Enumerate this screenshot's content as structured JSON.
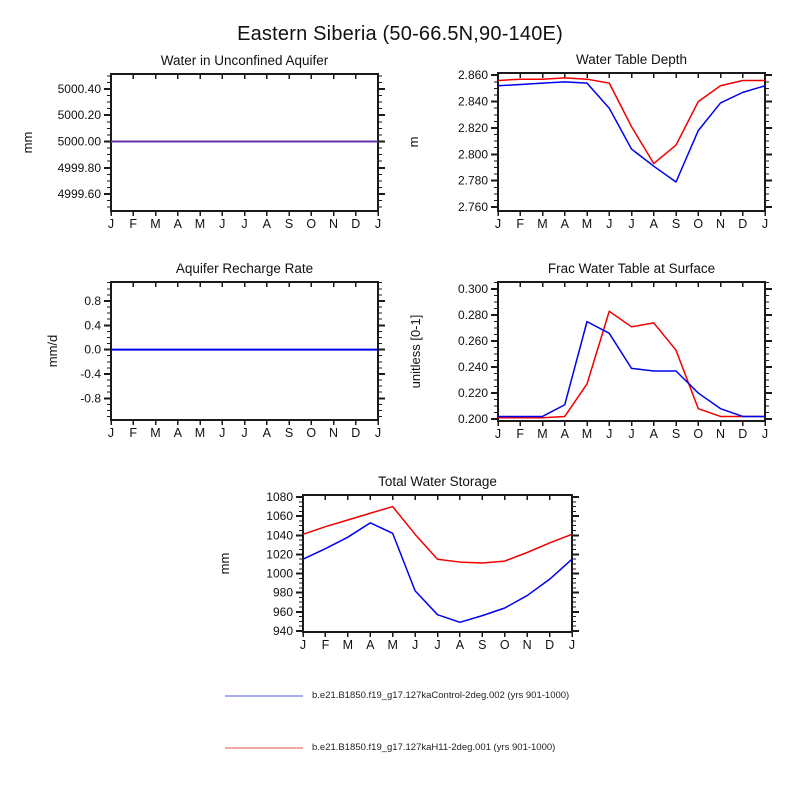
{
  "page_title": "Eastern Siberia (50-66.5N,90-140E)",
  "months": [
    "J",
    "F",
    "M",
    "A",
    "M",
    "J",
    "J",
    "A",
    "S",
    "O",
    "N",
    "D",
    "J"
  ],
  "colors": {
    "control_blue": "#0000F0",
    "h11_red": "#F00000",
    "overlap_purple": "#6430A8",
    "legend_control": "#A8AEEC",
    "legend_h11": "#F5A9A4",
    "axis": "#1A1A1A"
  },
  "legend": [
    {
      "series": "control",
      "label": "b.e21.B1850.f19_g17.127kaControl-2deg.002 (yrs 901-1000)"
    },
    {
      "series": "h11",
      "label": "b.e21.B1850.f19_g17.127kaH11-2deg.001 (yrs 901-1000)"
    }
  ],
  "chart_data": [
    {
      "id": "water-unconfined-aquifer",
      "type": "line",
      "title": "Water in Unconfined Aquifer",
      "ylabel": "mm",
      "ylim": [
        4999.471,
        5000.514
      ],
      "ytick_values": [
        4999.6,
        4999.8,
        5000.0,
        5000.2,
        5000.4
      ],
      "ytick_labels": [
        "4999.60",
        "4999.80",
        "5000.00",
        "5000.20",
        "5000.40"
      ],
      "grid": false,
      "overlap_display_color": "overlap_purple",
      "series": [
        {
          "name": "control",
          "values": [
            5000.0,
            5000.0,
            5000.0,
            5000.0,
            5000.0,
            5000.0,
            5000.0,
            5000.0,
            5000.0,
            5000.0,
            5000.0,
            5000.0,
            5000.0
          ]
        },
        {
          "name": "h11",
          "values": [
            5000.0,
            5000.0,
            5000.0,
            5000.0,
            5000.0,
            5000.0,
            5000.0,
            5000.0,
            5000.0,
            5000.0,
            5000.0,
            5000.0,
            5000.0
          ]
        }
      ]
    },
    {
      "id": "water-table-depth",
      "type": "line",
      "title": "Water Table Depth",
      "ylabel": "m",
      "ylim": [
        2.757,
        2.8617
      ],
      "ytick_values": [
        2.76,
        2.78,
        2.8,
        2.82,
        2.84,
        2.86
      ],
      "ytick_labels": [
        "2.760",
        "2.780",
        "2.800",
        "2.820",
        "2.840",
        "2.860"
      ],
      "grid": false,
      "series": [
        {
          "name": "control",
          "values": [
            2.852,
            2.853,
            2.854,
            2.855,
            2.854,
            2.835,
            2.804,
            2.791,
            2.779,
            2.818,
            2.839,
            2.847,
            2.852
          ]
        },
        {
          "name": "h11",
          "values": [
            2.856,
            2.857,
            2.857,
            2.858,
            2.857,
            2.854,
            2.821,
            2.793,
            2.807,
            2.84,
            2.852,
            2.856,
            2.856
          ]
        }
      ]
    },
    {
      "id": "aquifer-recharge-rate",
      "type": "line",
      "title": "Aquifer Recharge Rate",
      "ylabel": "mm/d",
      "ylim": [
        -1.157,
        1.112
      ],
      "ytick_values": [
        -0.8,
        -0.4,
        0.0,
        0.4,
        0.8
      ],
      "ytick_labels": [
        "-0.8",
        "-0.4",
        "0.0",
        "0.4",
        "0.8"
      ],
      "grid": false,
      "overlap_display_color": "control_blue",
      "series": [
        {
          "name": "control",
          "values": [
            0.0,
            0.0,
            0.0,
            0.0,
            0.0,
            0.0,
            0.0,
            0.0,
            0.0,
            0.0,
            0.0,
            0.0,
            0.0
          ]
        },
        {
          "name": "h11",
          "values": [
            0.0,
            0.0,
            0.0,
            0.0,
            0.0,
            0.0,
            0.0,
            0.0,
            0.0,
            0.0,
            0.0,
            0.0,
            0.0
          ]
        }
      ]
    },
    {
      "id": "frac-water-table-at-surface",
      "type": "line",
      "title": "Frac Water Table at Surface",
      "ylabel": "unitless [0-1]",
      "ylim": [
        0.1985,
        0.3055
      ],
      "ytick_values": [
        0.2,
        0.22,
        0.24,
        0.26,
        0.28,
        0.3
      ],
      "ytick_labels": [
        "0.200",
        "0.220",
        "0.240",
        "0.260",
        "0.280",
        "0.300"
      ],
      "grid": false,
      "series": [
        {
          "name": "control",
          "values": [
            0.202,
            0.202,
            0.202,
            0.211,
            0.275,
            0.266,
            0.239,
            0.237,
            0.237,
            0.22,
            0.208,
            0.202,
            0.202
          ]
        },
        {
          "name": "h11",
          "values": [
            0.201,
            0.201,
            0.201,
            0.202,
            0.227,
            0.283,
            0.271,
            0.274,
            0.253,
            0.208,
            0.202,
            0.202,
            0.202
          ]
        }
      ]
    },
    {
      "id": "total-water-storage",
      "type": "line",
      "title": "Total Water Storage",
      "ylabel": "mm",
      "ylim": [
        938.9,
        1082.1
      ],
      "ytick_values": [
        940,
        960,
        980,
        1000,
        1020,
        1040,
        1060,
        1080
      ],
      "ytick_labels": [
        "940",
        "960",
        "980",
        "1000",
        "1020",
        "1040",
        "1060",
        "1080"
      ],
      "grid": false,
      "series": [
        {
          "name": "control",
          "values": [
            1015,
            1026,
            1038,
            1053,
            1042,
            982,
            957,
            949,
            956,
            964,
            977,
            994,
            1015
          ]
        },
        {
          "name": "h11",
          "values": [
            1041,
            1049,
            1056,
            1063,
            1070,
            1041,
            1015,
            1012,
            1011,
            1013,
            1022,
            1032,
            1041
          ]
        }
      ]
    }
  ]
}
